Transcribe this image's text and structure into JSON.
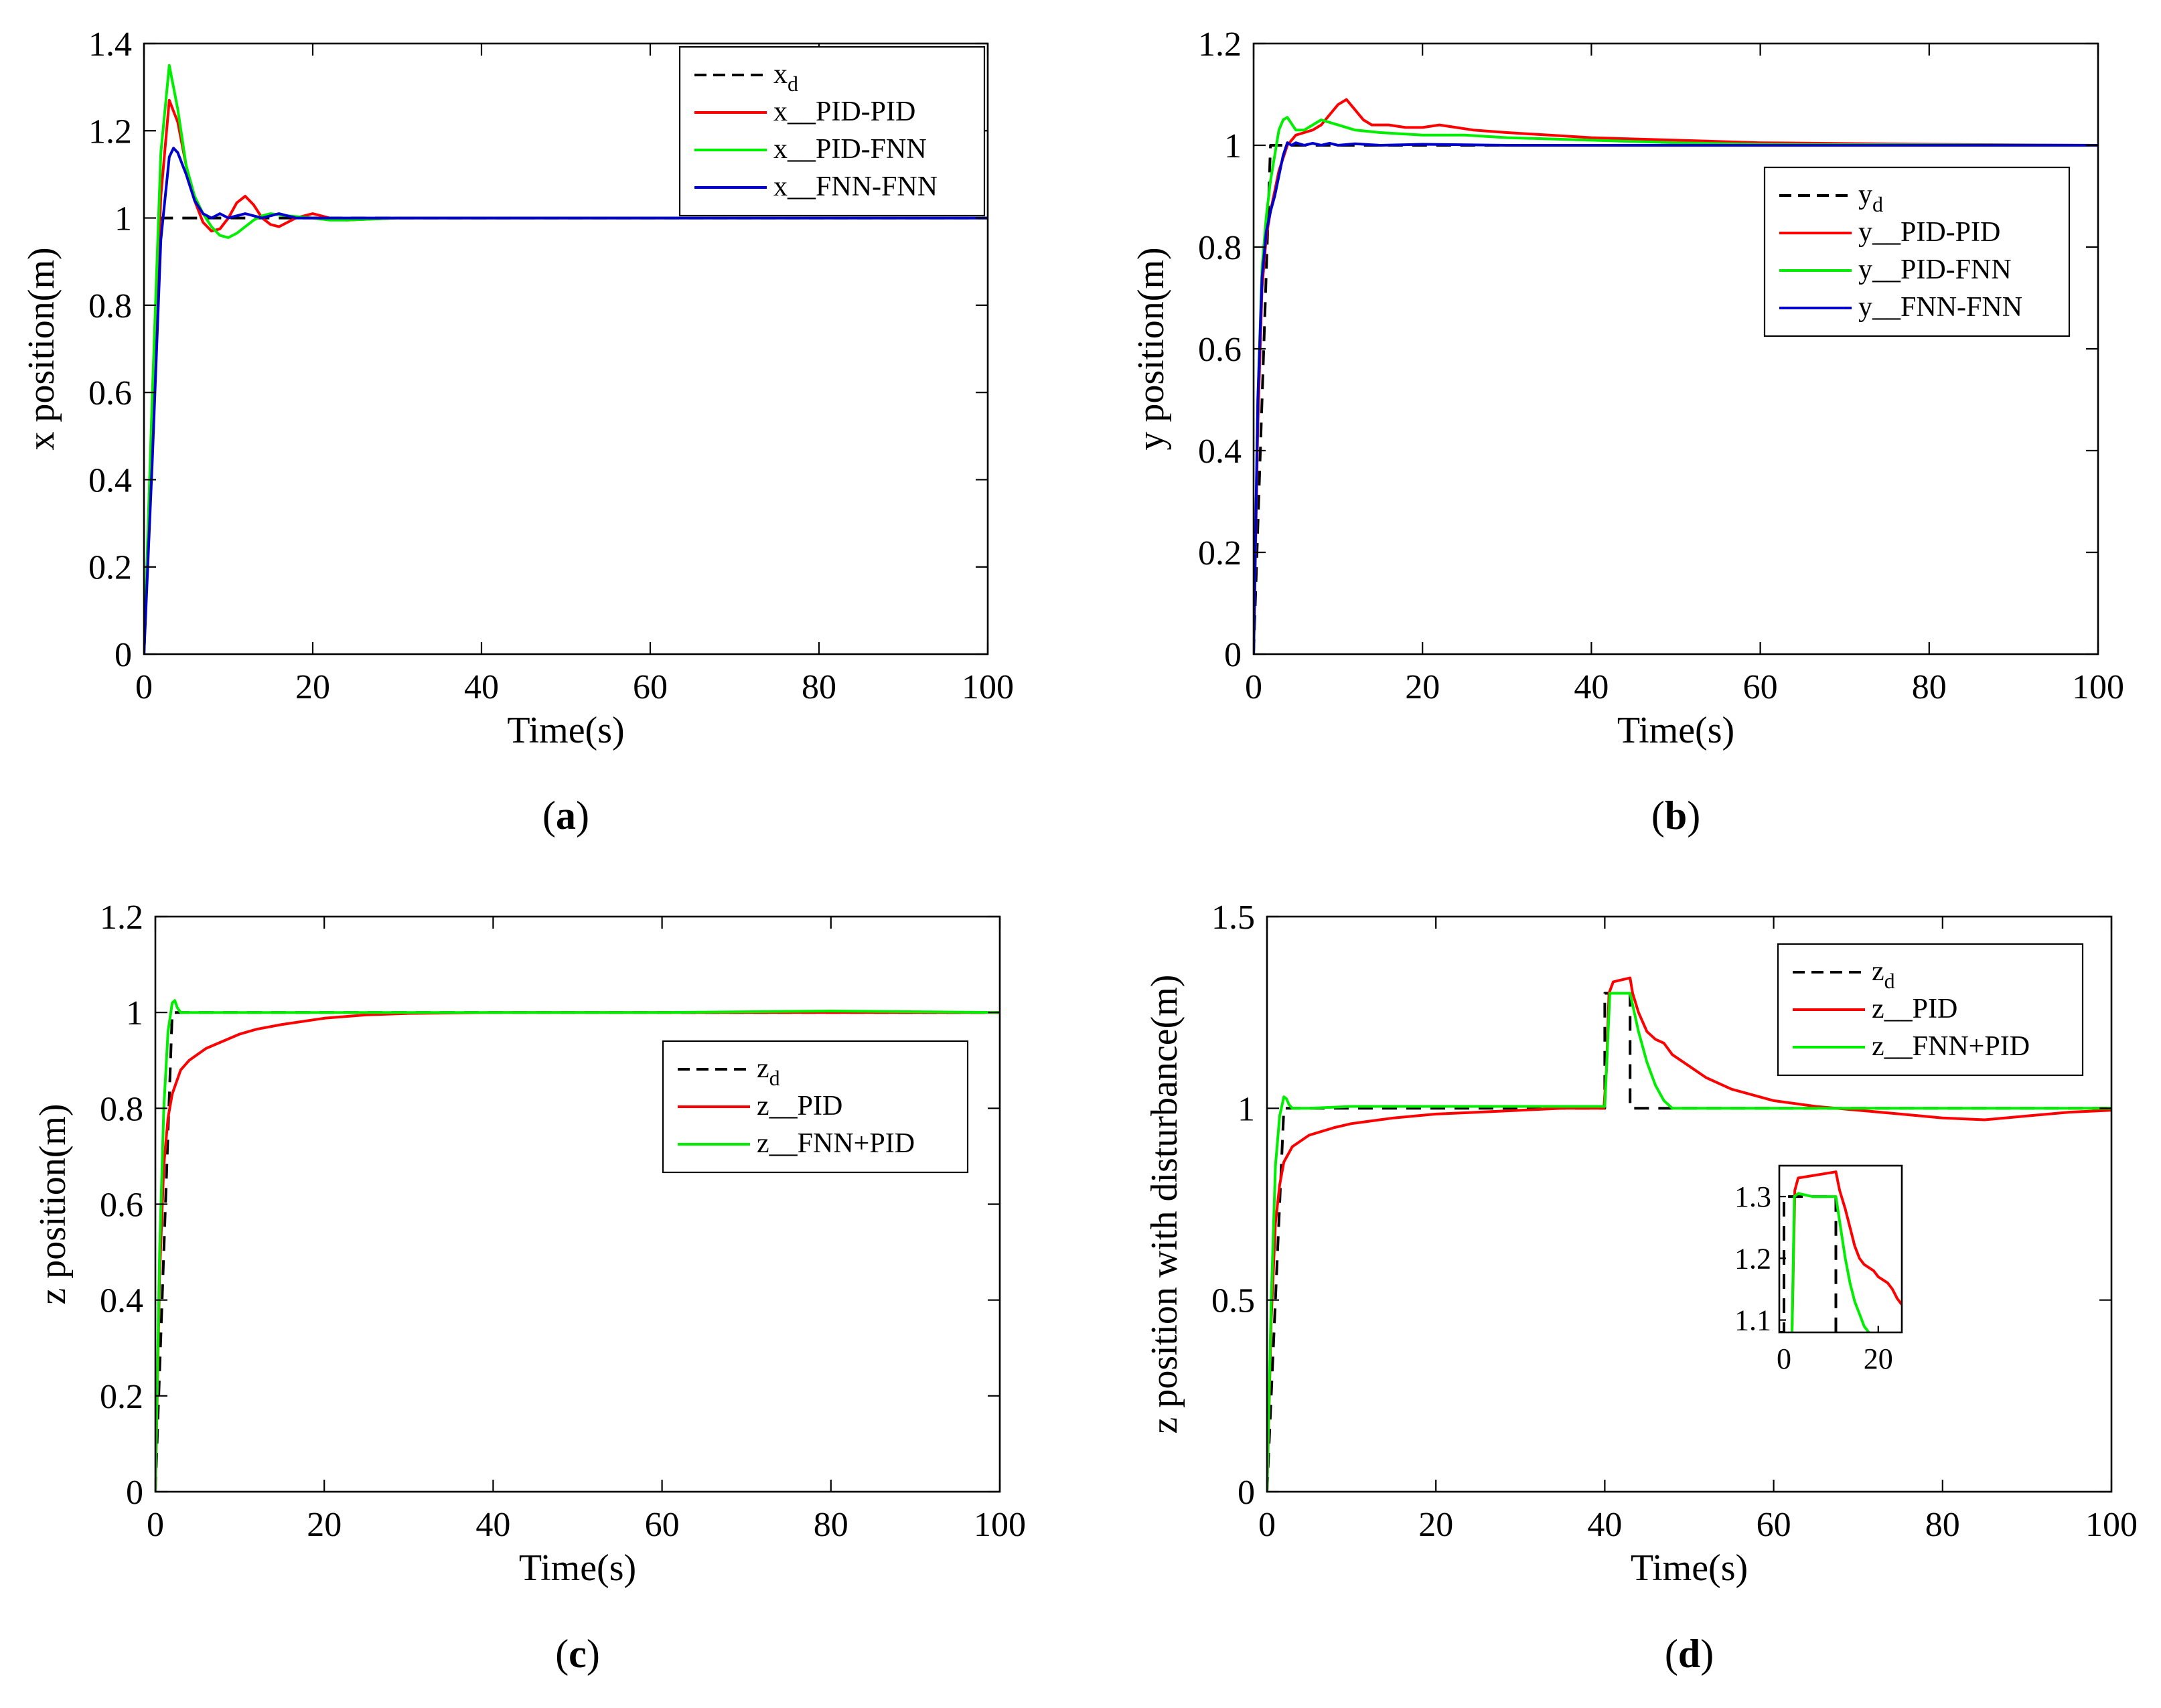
{
  "chart_data": [
    {
      "id": "a",
      "type": "line",
      "sublabel": "(a)",
      "xlabel": "Time(s)",
      "ylabel": "x position(m)",
      "xlim": [
        0,
        100
      ],
      "ylim": [
        0,
        1.4
      ],
      "xticks": [
        "0",
        "20",
        "40",
        "60",
        "80",
        "100"
      ],
      "yticks": [
        "0",
        "0.2",
        "0.4",
        "0.6",
        "0.8",
        "1",
        "1.2",
        "1.4"
      ],
      "legend_position": "top-right",
      "series": [
        {
          "name": "x",
          "sub": "d",
          "suffix": "",
          "color": "#000000",
          "dash": true,
          "x": [
            0,
            2,
            100
          ],
          "y": [
            0,
            1,
            1
          ]
        },
        {
          "name": "x",
          "sub": "",
          "suffix": "__PID-PID",
          "color": "#ff0000",
          "dash": false,
          "x": [
            0,
            1,
            2,
            3,
            4,
            5,
            6,
            7,
            8,
            9,
            10,
            11,
            12,
            13,
            14,
            15,
            16,
            17,
            18,
            20,
            22,
            24,
            30,
            40,
            60,
            80,
            100
          ],
          "y": [
            0,
            0.55,
            1.05,
            1.27,
            1.22,
            1.12,
            1.04,
            0.99,
            0.97,
            0.975,
            1.0,
            1.035,
            1.05,
            1.03,
            1.0,
            0.985,
            0.98,
            0.99,
            1.0,
            1.01,
            1.0,
            0.995,
            1.0,
            1.0,
            1.0,
            1.0,
            1.0
          ]
        },
        {
          "name": "x",
          "sub": "",
          "suffix": "__PID-FNN",
          "color": "#00ee00",
          "dash": false,
          "x": [
            0,
            1,
            2,
            3,
            4,
            5,
            6,
            7,
            8,
            9,
            10,
            11,
            12,
            13,
            14,
            15,
            17,
            20,
            22,
            24,
            30,
            40,
            60,
            80,
            100
          ],
          "y": [
            0,
            0.6,
            1.15,
            1.35,
            1.25,
            1.12,
            1.05,
            1.01,
            0.98,
            0.96,
            0.955,
            0.965,
            0.98,
            0.995,
            1.005,
            1.01,
            1.005,
            1.0,
            0.995,
            0.995,
            1.0,
            1.0,
            1.0,
            1.0,
            1.0
          ]
        },
        {
          "name": "x",
          "sub": "",
          "suffix": "__FNN-FNN",
          "color": "#0000cc",
          "dash": false,
          "x": [
            0,
            1,
            2,
            3,
            3.5,
            4,
            5,
            6,
            7,
            8,
            9,
            10,
            12,
            14,
            16,
            18,
            20,
            25,
            30,
            40,
            60,
            80,
            100
          ],
          "y": [
            0,
            0.45,
            0.95,
            1.14,
            1.16,
            1.15,
            1.1,
            1.04,
            1.01,
            1.0,
            1.01,
            1.0,
            1.01,
            1.0,
            1.01,
            1.0,
            1.0,
            1.0,
            1.0,
            1.0,
            1.0,
            1.0,
            1.0
          ]
        }
      ]
    },
    {
      "id": "b",
      "type": "line",
      "sublabel": "(b)",
      "xlabel": "Time(s)",
      "ylabel": "y position(m)",
      "xlim": [
        0,
        100
      ],
      "ylim": [
        0,
        1.2
      ],
      "xticks": [
        "0",
        "20",
        "40",
        "60",
        "80",
        "100"
      ],
      "yticks": [
        "0",
        "0.2",
        "0.4",
        "0.6",
        "0.8",
        "1",
        "1.2"
      ],
      "legend_position": "center-right",
      "series": [
        {
          "name": "y",
          "sub": "d",
          "suffix": "",
          "color": "#000000",
          "dash": true,
          "x": [
            0,
            2,
            100
          ],
          "y": [
            0,
            1,
            1
          ]
        },
        {
          "name": "y",
          "sub": "",
          "suffix": "__PID-PID",
          "color": "#ff0000",
          "dash": false,
          "x": [
            0,
            0.5,
            1,
            1.5,
            2,
            2.5,
            3,
            4,
            5,
            6,
            7,
            8,
            9,
            10,
            11,
            12,
            13,
            14,
            16,
            18,
            20,
            22,
            24,
            26,
            30,
            35,
            40,
            50,
            60,
            80,
            100
          ],
          "y": [
            0,
            0.45,
            0.72,
            0.82,
            0.87,
            0.91,
            0.95,
            1.0,
            1.02,
            1.025,
            1.03,
            1.04,
            1.06,
            1.08,
            1.09,
            1.07,
            1.05,
            1.04,
            1.04,
            1.035,
            1.035,
            1.04,
            1.035,
            1.03,
            1.025,
            1.02,
            1.015,
            1.01,
            1.005,
            1.002,
            1.0
          ]
        },
        {
          "name": "y",
          "sub": "",
          "suffix": "__PID-FNN",
          "color": "#00ee00",
          "dash": false,
          "x": [
            0,
            0.5,
            1,
            1.5,
            2,
            2.5,
            3,
            3.5,
            4,
            5,
            6,
            7,
            8,
            9,
            10,
            12,
            15,
            20,
            25,
            30,
            40,
            50,
            60,
            100
          ],
          "y": [
            0,
            0.5,
            0.76,
            0.86,
            0.93,
            0.98,
            1.03,
            1.05,
            1.055,
            1.03,
            1.03,
            1.04,
            1.05,
            1.045,
            1.04,
            1.03,
            1.025,
            1.02,
            1.02,
            1.015,
            1.01,
            1.005,
            1.002,
            1.0
          ]
        },
        {
          "name": "y",
          "sub": "",
          "suffix": "__FNN-FNN",
          "color": "#0000cc",
          "dash": false,
          "x": [
            0,
            0.5,
            1,
            1.5,
            2,
            2.5,
            3,
            3.5,
            4,
            4.5,
            5,
            6,
            7,
            8,
            9,
            10,
            12,
            15,
            20,
            30,
            40,
            60,
            80,
            100
          ],
          "y": [
            0,
            0.5,
            0.74,
            0.83,
            0.87,
            0.9,
            0.94,
            0.98,
            1.005,
            1.0,
            1.005,
            1.0,
            1.004,
            1.0,
            1.004,
            1.0,
            1.003,
            1.0,
            1.002,
            1.0,
            1.0,
            1.0,
            1.0,
            1.0
          ]
        }
      ]
    },
    {
      "id": "c",
      "type": "line",
      "sublabel": "(c)",
      "xlabel": "Time(s)",
      "ylabel": "z position(m)",
      "xlim": [
        0,
        100
      ],
      "ylim": [
        0,
        1.2
      ],
      "xticks": [
        "0",
        "20",
        "40",
        "60",
        "80",
        "100"
      ],
      "yticks": [
        "0",
        "0.2",
        "0.4",
        "0.6",
        "0.8",
        "1",
        "1.2"
      ],
      "legend_position": "center-right",
      "series": [
        {
          "name": "z",
          "sub": "d",
          "suffix": "",
          "color": "#000000",
          "dash": true,
          "x": [
            0,
            2,
            100
          ],
          "y": [
            0,
            1,
            1
          ]
        },
        {
          "name": "z",
          "sub": "",
          "suffix": "__PID",
          "color": "#ff0000",
          "dash": false,
          "x": [
            0,
            0.5,
            1,
            1.5,
            2,
            3,
            4,
            6,
            8,
            10,
            12,
            15,
            20,
            25,
            30,
            40,
            50,
            60,
            80,
            100
          ],
          "y": [
            0,
            0.45,
            0.68,
            0.78,
            0.83,
            0.88,
            0.9,
            0.925,
            0.94,
            0.955,
            0.965,
            0.975,
            0.988,
            0.995,
            0.998,
            1.0,
            1.0,
            1.0,
            1.0,
            1.0
          ]
        },
        {
          "name": "z",
          "sub": "",
          "suffix": "__FNN+PID",
          "color": "#00ee00",
          "dash": false,
          "x": [
            0,
            0.5,
            1,
            1.5,
            2,
            2.3,
            2.6,
            3,
            4,
            5,
            10,
            20,
            40,
            60,
            80,
            100
          ],
          "y": [
            0,
            0.5,
            0.8,
            0.96,
            1.02,
            1.025,
            1.01,
            1.0,
            1.0,
            1.0,
            1.0,
            1.0,
            1.0,
            1.0,
            1.003,
            1.0
          ]
        }
      ]
    },
    {
      "id": "d",
      "type": "line",
      "sublabel": "(d)",
      "xlabel": "Time(s)",
      "ylabel": "z position with disturbance(m)",
      "xlim": [
        0,
        100
      ],
      "ylim": [
        0,
        1.5
      ],
      "xticks": [
        "0",
        "20",
        "40",
        "60",
        "80",
        "100"
      ],
      "yticks": [
        "0",
        "0.5",
        "1",
        "1.5"
      ],
      "legend_position": "top-right",
      "series": [
        {
          "name": "z",
          "sub": "d",
          "suffix": "",
          "color": "#000000",
          "dash": true,
          "x": [
            0,
            2,
            40,
            40,
            43,
            43,
            100
          ],
          "y": [
            0,
            1,
            1,
            1.3,
            1.3,
            1,
            1
          ]
        },
        {
          "name": "z",
          "sub": "",
          "suffix": "__PID",
          "color": "#ff0000",
          "dash": false,
          "x": [
            0,
            0.5,
            1,
            1.5,
            2,
            3,
            5,
            8,
            10,
            15,
            20,
            25,
            30,
            35,
            39.9,
            40.2,
            40.5,
            41,
            43,
            43.3,
            44,
            45,
            46,
            47,
            48,
            50,
            52,
            55,
            60,
            65,
            70,
            75,
            80,
            85,
            90,
            95,
            100
          ],
          "y": [
            0,
            0.45,
            0.7,
            0.8,
            0.86,
            0.9,
            0.93,
            0.95,
            0.96,
            0.975,
            0.985,
            0.99,
            0.995,
            1.0,
            1.0,
            1.1,
            1.3,
            1.33,
            1.34,
            1.3,
            1.25,
            1.2,
            1.18,
            1.17,
            1.14,
            1.11,
            1.08,
            1.05,
            1.02,
            1.005,
            0.995,
            0.985,
            0.975,
            0.97,
            0.98,
            0.99,
            0.995
          ]
        },
        {
          "name": "z",
          "sub": "",
          "suffix": "__FNN+PID",
          "color": "#00ee00",
          "dash": false,
          "x": [
            0,
            0.5,
            1,
            1.5,
            2,
            2.3,
            2.6,
            3,
            5,
            10,
            20,
            30,
            40,
            40.3,
            40.6,
            43,
            44,
            45,
            46,
            47,
            48,
            50,
            60,
            70,
            80,
            90,
            100
          ],
          "y": [
            0,
            0.5,
            0.85,
            0.98,
            1.03,
            1.025,
            1.01,
            1.0,
            1.0,
            1.005,
            1.005,
            1.005,
            1.005,
            1.15,
            1.3,
            1.3,
            1.2,
            1.12,
            1.06,
            1.02,
            1.0,
            1.0,
            1.0,
            1.0,
            1.0,
            1.0,
            1.0
          ]
        }
      ],
      "inset": {
        "xlim": [
          -1,
          25
        ],
        "ylim": [
          1.08,
          1.35
        ],
        "xticks": [
          "0",
          "20"
        ],
        "yticks": [
          "1.1",
          "1.2",
          "1.3"
        ],
        "series": [
          {
            "color": "#000000",
            "dash": true,
            "x": [
              -1,
              0,
              0,
              11,
              11
            ],
            "y": [
              1.08,
              1.08,
              1.3,
              1.3,
              1.08
            ]
          },
          {
            "color": "#ff0000",
            "dash": false,
            "x": [
              1.7,
              2.3,
              3,
              7,
              11,
              11.8,
              13,
              14,
              15,
              16,
              17,
              18,
              19,
              20,
              21,
              22,
              23,
              24,
              25
            ],
            "y": [
              1.08,
              1.31,
              1.33,
              1.335,
              1.34,
              1.31,
              1.28,
              1.25,
              1.22,
              1.2,
              1.19,
              1.185,
              1.18,
              1.17,
              1.165,
              1.16,
              1.15,
              1.135,
              1.125
            ]
          },
          {
            "color": "#00ee00",
            "dash": false,
            "x": [
              1.7,
              2.2,
              3,
              6,
              11,
              12,
              13,
              14,
              15,
              16,
              17,
              18
            ],
            "y": [
              1.08,
              1.3,
              1.305,
              1.3,
              1.3,
              1.25,
              1.2,
              1.16,
              1.13,
              1.11,
              1.09,
              1.08
            ]
          }
        ]
      }
    }
  ]
}
